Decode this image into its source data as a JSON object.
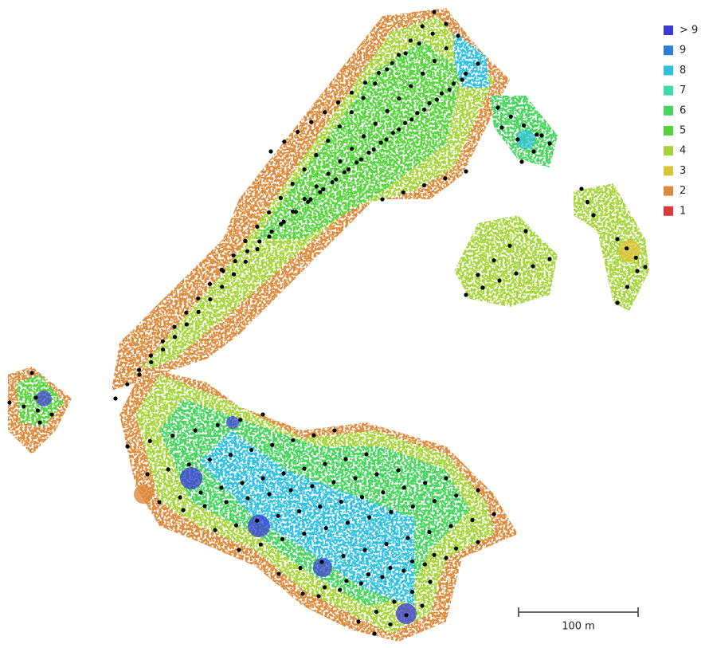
{
  "legend": {
    "items": [
      {
        "label": "> 9",
        "color": "#3a3ad6"
      },
      {
        "label": "9",
        "color": "#2f7fd8"
      },
      {
        "label": "8",
        "color": "#2fc0e0"
      },
      {
        "label": "7",
        "color": "#3ddba8"
      },
      {
        "label": "6",
        "color": "#45d45c"
      },
      {
        "label": "5",
        "color": "#55d43a"
      },
      {
        "label": "4",
        "color": "#a6d43a"
      },
      {
        "label": "3",
        "color": "#dcc43a"
      },
      {
        "label": "2",
        "color": "#dc8a3a"
      },
      {
        "label": "1",
        "color": "#dc3a3a"
      }
    ]
  },
  "scale_bar": {
    "label": "100 m"
  }
}
